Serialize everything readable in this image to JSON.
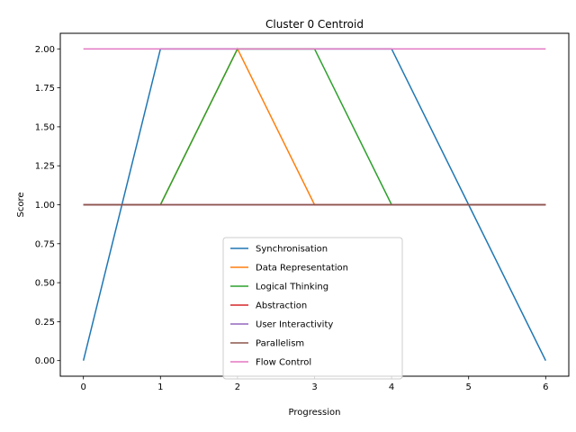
{
  "chart_data": {
    "type": "line",
    "title": "Cluster 0 Centroid",
    "xlabel": "Progression",
    "ylabel": "Score",
    "x": [
      0,
      1,
      2,
      3,
      4,
      5,
      6
    ],
    "xticks": [
      "0",
      "1",
      "2",
      "3",
      "4",
      "5",
      "6"
    ],
    "yticks": [
      "0.00",
      "0.25",
      "0.50",
      "0.75",
      "1.00",
      "1.25",
      "1.50",
      "1.75",
      "2.00"
    ],
    "xlim": [
      -0.3,
      6.3
    ],
    "ylim": [
      -0.1,
      2.1
    ],
    "grid": false,
    "legend_position": "lower center",
    "series": [
      {
        "name": "Synchronisation",
        "color": "#1f77b4",
        "values": [
          0,
          2,
          2,
          2,
          2,
          1,
          0
        ]
      },
      {
        "name": "Data Representation",
        "color": "#ff7f0e",
        "values": [
          1,
          1,
          2,
          1,
          1,
          1,
          1
        ]
      },
      {
        "name": "Logical Thinking",
        "color": "#2ca02c",
        "values": [
          1,
          1,
          2,
          2,
          1,
          1,
          1
        ]
      },
      {
        "name": "Abstraction",
        "color": "#d62728",
        "values": [
          1,
          1,
          1,
          1,
          1,
          1,
          1
        ]
      },
      {
        "name": "User Interactivity",
        "color": "#9467bd",
        "values": [
          1,
          1,
          1,
          1,
          1,
          1,
          1
        ]
      },
      {
        "name": "Parallelism",
        "color": "#8c564b",
        "values": [
          1,
          1,
          1,
          1,
          1,
          1,
          1
        ]
      },
      {
        "name": "Flow Control",
        "color": "#e377c2",
        "values": [
          2,
          2,
          2,
          2,
          2,
          2,
          2
        ]
      }
    ]
  }
}
